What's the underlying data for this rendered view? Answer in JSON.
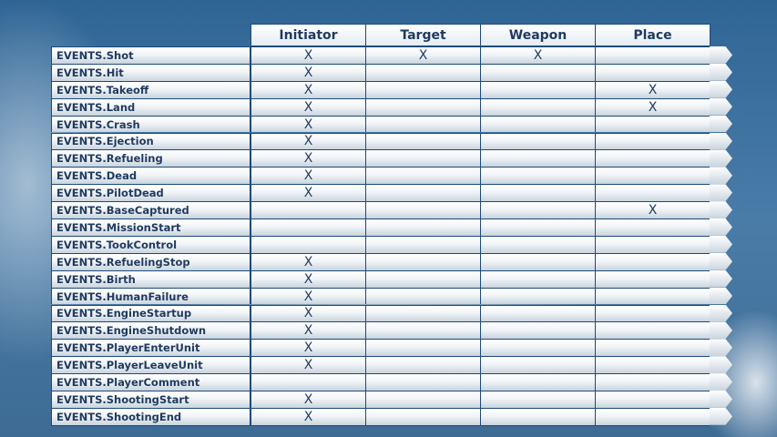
{
  "columns": [
    "Initiator",
    "Target",
    "Weapon",
    "Place"
  ],
  "rows": [
    {
      "event": "EVENTS.Shot",
      "marks": [
        "X",
        "X",
        "X",
        ""
      ]
    },
    {
      "event": "EVENTS.Hit",
      "marks": [
        "X",
        "",
        "",
        ""
      ]
    },
    {
      "event": "EVENTS.Takeoff",
      "marks": [
        "X",
        "",
        "",
        "X"
      ]
    },
    {
      "event": "EVENTS.Land",
      "marks": [
        "X",
        "",
        "",
        "X"
      ]
    },
    {
      "event": "EVENTS.Crash",
      "marks": [
        "X",
        "",
        "",
        ""
      ]
    },
    {
      "event": "EVENTS.Ejection",
      "marks": [
        "X",
        "",
        "",
        ""
      ]
    },
    {
      "event": "EVENTS.Refueling",
      "marks": [
        "X",
        "",
        "",
        ""
      ]
    },
    {
      "event": "EVENTS.Dead",
      "marks": [
        "X",
        "",
        "",
        ""
      ]
    },
    {
      "event": "EVENTS.PilotDead",
      "marks": [
        "X",
        "",
        "",
        ""
      ]
    },
    {
      "event": "EVENTS.BaseCaptured",
      "marks": [
        "",
        "",
        "",
        "X"
      ]
    },
    {
      "event": "EVENTS.MissionStart",
      "marks": [
        "",
        "",
        "",
        ""
      ]
    },
    {
      "event": "EVENTS.TookControl",
      "marks": [
        "",
        "",
        "",
        ""
      ]
    },
    {
      "event": "EVENTS.RefuelingStop",
      "marks": [
        "X",
        "",
        "",
        ""
      ]
    },
    {
      "event": "EVENTS.Birth",
      "marks": [
        "X",
        "",
        "",
        ""
      ]
    },
    {
      "event": "EVENTS.HumanFailure",
      "marks": [
        "X",
        "",
        "",
        ""
      ]
    },
    {
      "event": "EVENTS.EngineStartup",
      "marks": [
        "X",
        "",
        "",
        ""
      ]
    },
    {
      "event": "EVENTS.EngineShutdown",
      "marks": [
        "X",
        "",
        "",
        ""
      ]
    },
    {
      "event": "EVENTS.PlayerEnterUnit",
      "marks": [
        "X",
        "",
        "",
        ""
      ]
    },
    {
      "event": "EVENTS.PlayerLeaveUnit",
      "marks": [
        "X",
        "",
        "",
        ""
      ]
    },
    {
      "event": "EVENTS.PlayerComment",
      "marks": [
        "",
        "",
        "",
        ""
      ]
    },
    {
      "event": "EVENTS.ShootingStart",
      "marks": [
        "X",
        "",
        "",
        ""
      ]
    },
    {
      "event": "EVENTS.ShootingEnd",
      "marks": [
        "X",
        "",
        "",
        ""
      ]
    }
  ]
}
